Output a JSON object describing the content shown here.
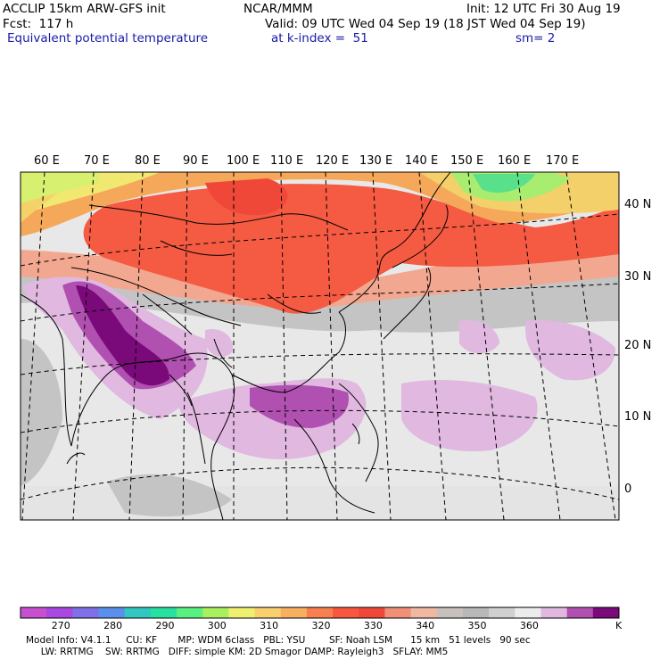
{
  "header": {
    "model_title": "ACCLIP 15km ARW-GFS init",
    "center": "NCAR/MMM",
    "init": "Init: 12 UTC Fri 30 Aug 19",
    "fcst": "Fcst:  117 h",
    "valid": "Valid: 09 UTC Wed 04 Sep 19 (18 JST Wed 04 Sep 19)",
    "field": "Equivalent potential temperature",
    "level": "at k-index =  51",
    "smooth": "sm= 2"
  },
  "map": {
    "lon_labels": [
      "60 E",
      "70 E",
      "80 E",
      "90 E",
      "100 E",
      "110 E",
      "120 E",
      "130 E",
      "140 E",
      "150 E",
      "160 E",
      "170 E"
    ],
    "lat_labels": [
      "40 N",
      "30 N",
      "20 N",
      "10 N",
      "0"
    ]
  },
  "colorbar": {
    "colors": [
      "#c84fd0",
      "#a848e0",
      "#8070e8",
      "#5a90ec",
      "#30c8c0",
      "#28e0a0",
      "#58f080",
      "#a8f060",
      "#f0f070",
      "#f8d070",
      "#f8b060",
      "#f88050",
      "#f85840",
      "#f04838",
      "#f09078",
      "#f0b8a0",
      "#c8c0bc",
      "#b8b8b8",
      "#d0d0d0",
      "#ececec",
      "#e0b8e0",
      "#b050b0",
      "#7a0a7a"
    ],
    "tick_labels": [
      "270",
      "280",
      "290",
      "300",
      "310",
      "320",
      "330",
      "340",
      "350",
      "360"
    ],
    "unit": "K"
  },
  "footer": {
    "line1": "Model Info: V4.1.1     CU: KF       MP: WDM 6class   PBL: YSU        SF: Noah LSM      15 km   51 levels   90 sec",
    "line2": "     LW: RRTMG    SW: RRTMG   DIFF: simple KM: 2D Smagor DAMP: Rayleigh3   SFLAY: MM5"
  }
}
